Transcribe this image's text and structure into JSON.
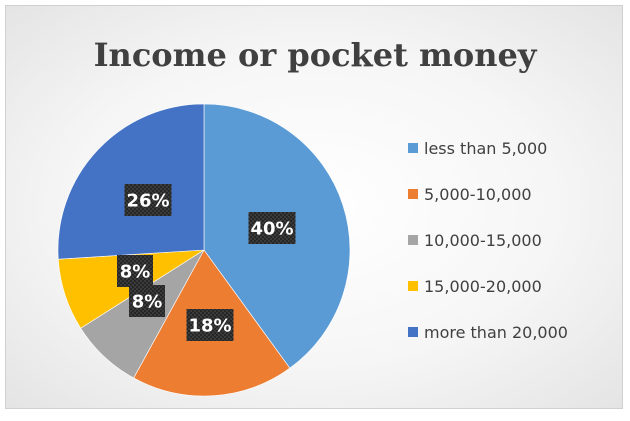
{
  "chart_data": {
    "type": "pie",
    "title": "Income or pocket money",
    "categories": [
      "less than 5,000",
      "5,000-10,000",
      "10,000-15,000",
      "15,000-20,000",
      "more than 20,000"
    ],
    "values": [
      40,
      18,
      8,
      8,
      26
    ],
    "data_labels": [
      "40%",
      "18%",
      "8%",
      "8%",
      "26%"
    ],
    "colors": [
      "#5B9BD5",
      "#ED7D31",
      "#A5A5A5",
      "#FFC000",
      "#4472C4"
    ],
    "legend_position": "right",
    "start_angle_deg": 0,
    "direction": "clockwise"
  }
}
